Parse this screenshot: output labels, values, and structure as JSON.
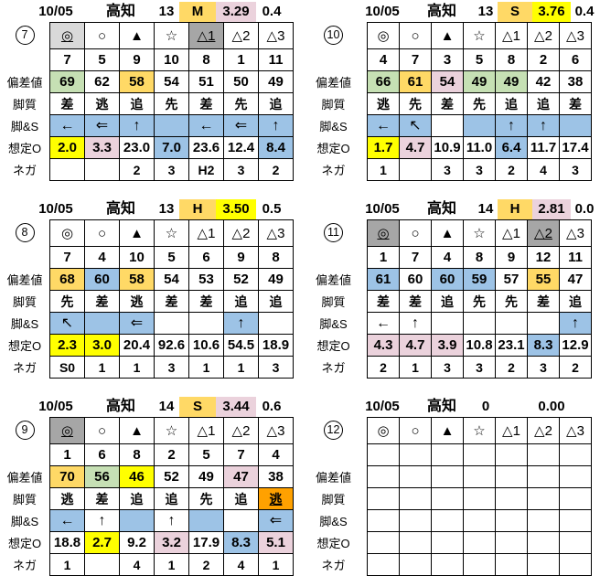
{
  "colors": {
    "grayLight": "#d9d9d9",
    "grayDark": "#a6a6a6",
    "green": "#c6e0b4",
    "gold": "#ffd966",
    "yellow": "#ffff00",
    "blue": "#9dc3e6",
    "pink": "#ebd2dc",
    "orange": "#ffa100"
  },
  "row_labels": {
    "hensachi": "偏差値",
    "kyakushitsu": "脚質",
    "ashi_s": "脚&S",
    "soutei_o": "想定O",
    "nega": "ネガ"
  },
  "blocks": [
    {
      "num": "7",
      "header": {
        "date": "10/05",
        "track": "高知",
        "race": "13",
        "pace": "M",
        "pace_bg": "gold",
        "odds": "3.29",
        "odds_bg": "pink",
        "diff": "0.4"
      },
      "rows": {
        "marks": [
          {
            "t": "◎",
            "bg": "grayLight",
            "u": true
          },
          {
            "t": "○"
          },
          {
            "t": "▲"
          },
          {
            "t": "☆"
          },
          {
            "t": "△1",
            "bg": "grayDark",
            "u": true,
            "b": true
          },
          {
            "t": "△2"
          },
          {
            "t": "△3"
          }
        ],
        "numbers": [
          {
            "t": "7"
          },
          {
            "t": "5"
          },
          {
            "t": "9"
          },
          {
            "t": "10"
          },
          {
            "t": "8"
          },
          {
            "t": "1"
          },
          {
            "t": "11"
          }
        ],
        "hensachi": [
          {
            "t": "69",
            "bg": "green"
          },
          {
            "t": "62"
          },
          {
            "t": "58",
            "bg": "gold"
          },
          {
            "t": "54"
          },
          {
            "t": "51"
          },
          {
            "t": "50"
          },
          {
            "t": "49"
          }
        ],
        "kyakushitsu": [
          {
            "t": "差"
          },
          {
            "t": "逃"
          },
          {
            "t": "追"
          },
          {
            "t": "先"
          },
          {
            "t": "差"
          },
          {
            "t": "先"
          },
          {
            "t": "追"
          }
        ],
        "ashi_s": [
          {
            "t": "←",
            "bg": "blue"
          },
          {
            "t": "⇐",
            "bg": "blue"
          },
          {
            "t": "↑",
            "bg": "blue"
          },
          {
            "t": "",
            "bg": "blue"
          },
          {
            "t": "←",
            "bg": "blue"
          },
          {
            "t": "⇐",
            "bg": "blue"
          },
          {
            "t": "↑",
            "bg": "blue"
          }
        ],
        "soutei_o": [
          {
            "t": "2.0",
            "bg": "yellow"
          },
          {
            "t": "3.3",
            "bg": "pink"
          },
          {
            "t": "23.0"
          },
          {
            "t": "7.0",
            "bg": "blue"
          },
          {
            "t": "23.6"
          },
          {
            "t": "12.4"
          },
          {
            "t": "8.4",
            "bg": "blue"
          }
        ],
        "nega": [
          {
            "t": ""
          },
          {
            "t": ""
          },
          {
            "t": "2"
          },
          {
            "t": "3"
          },
          {
            "t": "H2"
          },
          {
            "t": "3"
          },
          {
            "t": "2"
          }
        ]
      }
    },
    {
      "num": "8",
      "header": {
        "date": "10/05",
        "track": "高知",
        "race": "13",
        "pace": "H",
        "pace_bg": "gold",
        "odds": "3.50",
        "odds_bg": "yellow",
        "diff": "0.5"
      },
      "rows": {
        "marks": [
          {
            "t": "◎"
          },
          {
            "t": "○"
          },
          {
            "t": "▲"
          },
          {
            "t": "☆"
          },
          {
            "t": "△1"
          },
          {
            "t": "△2"
          },
          {
            "t": "△3"
          }
        ],
        "numbers": [
          {
            "t": "7"
          },
          {
            "t": "4"
          },
          {
            "t": "10"
          },
          {
            "t": "5"
          },
          {
            "t": "6"
          },
          {
            "t": "9"
          },
          {
            "t": "8"
          }
        ],
        "hensachi": [
          {
            "t": "68",
            "bg": "gold"
          },
          {
            "t": "60",
            "bg": "blue"
          },
          {
            "t": "58",
            "bg": "gold"
          },
          {
            "t": "54"
          },
          {
            "t": "53"
          },
          {
            "t": "52"
          },
          {
            "t": "49"
          }
        ],
        "kyakushitsu": [
          {
            "t": "先"
          },
          {
            "t": "差"
          },
          {
            "t": "逃"
          },
          {
            "t": "差"
          },
          {
            "t": "差"
          },
          {
            "t": "追"
          },
          {
            "t": "追"
          }
        ],
        "ashi_s": [
          {
            "t": "↖",
            "bg": "blue"
          },
          {
            "t": "",
            "bg": "blue"
          },
          {
            "t": "⇐",
            "bg": "blue"
          },
          {
            "t": ""
          },
          {
            "t": ""
          },
          {
            "t": "↑",
            "bg": "blue"
          },
          {
            "t": ""
          }
        ],
        "soutei_o": [
          {
            "t": "2.3",
            "bg": "yellow"
          },
          {
            "t": "3.0",
            "bg": "yellow"
          },
          {
            "t": "20.4"
          },
          {
            "t": "92.6"
          },
          {
            "t": "10.6"
          },
          {
            "t": "54.5"
          },
          {
            "t": "18.9"
          }
        ],
        "nega": [
          {
            "t": "S0"
          },
          {
            "t": "1"
          },
          {
            "t": "1"
          },
          {
            "t": "3"
          },
          {
            "t": "1"
          },
          {
            "t": "1"
          },
          {
            "t": "3"
          }
        ]
      }
    },
    {
      "num": "9",
      "header": {
        "date": "10/05",
        "track": "高知",
        "race": "14",
        "pace": "S",
        "pace_bg": "gold",
        "odds": "3.44",
        "odds_bg": "pink",
        "diff": "0.6"
      },
      "rows": {
        "marks": [
          {
            "t": "◎",
            "bg": "grayDark",
            "u": true
          },
          {
            "t": "○"
          },
          {
            "t": "▲"
          },
          {
            "t": "☆"
          },
          {
            "t": "△1"
          },
          {
            "t": "△2"
          },
          {
            "t": "△3"
          }
        ],
        "numbers": [
          {
            "t": "1"
          },
          {
            "t": "6"
          },
          {
            "t": "8"
          },
          {
            "t": "2"
          },
          {
            "t": "5"
          },
          {
            "t": "7"
          },
          {
            "t": "4"
          }
        ],
        "hensachi": [
          {
            "t": "70",
            "bg": "gold"
          },
          {
            "t": "56",
            "bg": "green"
          },
          {
            "t": "46",
            "bg": "yellow"
          },
          {
            "t": "52"
          },
          {
            "t": "49"
          },
          {
            "t": "47",
            "bg": "pink"
          },
          {
            "t": "38"
          }
        ],
        "kyakushitsu": [
          {
            "t": "逃"
          },
          {
            "t": "差"
          },
          {
            "t": "追"
          },
          {
            "t": "追"
          },
          {
            "t": "先"
          },
          {
            "t": "追"
          },
          {
            "t": "逃",
            "bg": "orange",
            "u": true
          }
        ],
        "ashi_s": [
          {
            "t": "←",
            "bg": "blue"
          },
          {
            "t": "↑"
          },
          {
            "t": "",
            "bg": "blue"
          },
          {
            "t": "↑"
          },
          {
            "t": "",
            "bg": "blue"
          },
          {
            "t": ""
          },
          {
            "t": "⇐",
            "bg": "blue"
          }
        ],
        "soutei_o": [
          {
            "t": "18.8"
          },
          {
            "t": "2.7",
            "bg": "yellow"
          },
          {
            "t": "9.2"
          },
          {
            "t": "3.2",
            "bg": "pink"
          },
          {
            "t": "17.9"
          },
          {
            "t": "8.3",
            "bg": "blue"
          },
          {
            "t": "5.1",
            "bg": "pink"
          }
        ],
        "nega": [
          {
            "t": "1"
          },
          {
            "t": ""
          },
          {
            "t": "4"
          },
          {
            "t": "1"
          },
          {
            "t": "2"
          },
          {
            "t": "4"
          },
          {
            "t": "1"
          }
        ]
      }
    },
    {
      "num": "10",
      "header": {
        "date": "10/05",
        "track": "高知",
        "race": "13",
        "pace": "S",
        "pace_bg": "gold",
        "odds": "3.76",
        "odds_bg": "yellow",
        "diff": "0.4"
      },
      "rows": {
        "marks": [
          {
            "t": "◎"
          },
          {
            "t": "○"
          },
          {
            "t": "▲"
          },
          {
            "t": "☆"
          },
          {
            "t": "△1"
          },
          {
            "t": "△2"
          },
          {
            "t": "△3"
          }
        ],
        "numbers": [
          {
            "t": "4"
          },
          {
            "t": "7"
          },
          {
            "t": "3"
          },
          {
            "t": "5"
          },
          {
            "t": "8"
          },
          {
            "t": "2"
          },
          {
            "t": "6"
          }
        ],
        "hensachi": [
          {
            "t": "66",
            "bg": "green"
          },
          {
            "t": "61",
            "bg": "gold"
          },
          {
            "t": "54",
            "bg": "pink"
          },
          {
            "t": "49",
            "bg": "green"
          },
          {
            "t": "49",
            "bg": "green"
          },
          {
            "t": "42"
          },
          {
            "t": "38"
          }
        ],
        "kyakushitsu": [
          {
            "t": "逃"
          },
          {
            "t": "先"
          },
          {
            "t": "差"
          },
          {
            "t": "先"
          },
          {
            "t": "追"
          },
          {
            "t": "追"
          },
          {
            "t": "差"
          }
        ],
        "ashi_s": [
          {
            "t": "←",
            "bg": "blue"
          },
          {
            "t": "↖",
            "bg": "blue"
          },
          {
            "t": ""
          },
          {
            "t": "",
            "bg": "blue"
          },
          {
            "t": "↑",
            "bg": "blue"
          },
          {
            "t": "↑",
            "bg": "blue"
          },
          {
            "t": "",
            "bg": "blue"
          }
        ],
        "soutei_o": [
          {
            "t": "1.7",
            "bg": "yellow"
          },
          {
            "t": "4.7",
            "bg": "pink"
          },
          {
            "t": "10.9"
          },
          {
            "t": "11.0"
          },
          {
            "t": "6.4",
            "bg": "blue"
          },
          {
            "t": "11.7"
          },
          {
            "t": "17.4"
          }
        ],
        "nega": [
          {
            "t": "1"
          },
          {
            "t": ""
          },
          {
            "t": "3"
          },
          {
            "t": "3"
          },
          {
            "t": "2"
          },
          {
            "t": "4"
          },
          {
            "t": "3"
          }
        ]
      }
    },
    {
      "num": "11",
      "header": {
        "date": "10/05",
        "track": "高知",
        "race": "14",
        "pace": "H",
        "pace_bg": "gold",
        "odds": "2.81",
        "odds_bg": "pink",
        "diff": "0.0"
      },
      "rows": {
        "marks": [
          {
            "t": "◎",
            "bg": "grayDark",
            "u": true
          },
          {
            "t": "○"
          },
          {
            "t": "▲"
          },
          {
            "t": "☆"
          },
          {
            "t": "△1"
          },
          {
            "t": "△2",
            "bg": "grayDark",
            "u": true,
            "b": true
          },
          {
            "t": "△3"
          }
        ],
        "numbers": [
          {
            "t": "1"
          },
          {
            "t": "7"
          },
          {
            "t": "4"
          },
          {
            "t": "8"
          },
          {
            "t": "9"
          },
          {
            "t": "12"
          },
          {
            "t": "11"
          }
        ],
        "hensachi": [
          {
            "t": "61",
            "bg": "blue"
          },
          {
            "t": "60"
          },
          {
            "t": "60",
            "bg": "blue"
          },
          {
            "t": "59",
            "bg": "blue"
          },
          {
            "t": "57"
          },
          {
            "t": "55",
            "bg": "gold"
          },
          {
            "t": "47"
          }
        ],
        "kyakushitsu": [
          {
            "t": "差"
          },
          {
            "t": "差"
          },
          {
            "t": "追"
          },
          {
            "t": "先"
          },
          {
            "t": "先"
          },
          {
            "t": "差"
          },
          {
            "t": "追"
          }
        ],
        "ashi_s": [
          {
            "t": "←"
          },
          {
            "t": "↑"
          },
          {
            "t": ""
          },
          {
            "t": ""
          },
          {
            "t": ""
          },
          {
            "t": ""
          },
          {
            "t": "↑",
            "bg": "blue"
          }
        ],
        "soutei_o": [
          {
            "t": "4.3",
            "bg": "pink"
          },
          {
            "t": "4.7",
            "bg": "pink"
          },
          {
            "t": "3.9",
            "bg": "pink"
          },
          {
            "t": "10.8"
          },
          {
            "t": "23.1"
          },
          {
            "t": "8.3",
            "bg": "blue"
          },
          {
            "t": "12.9"
          }
        ],
        "nega": [
          {
            "t": "2"
          },
          {
            "t": "1"
          },
          {
            "t": "3"
          },
          {
            "t": "3"
          },
          {
            "t": "2"
          },
          {
            "t": "3"
          },
          {
            "t": "2"
          }
        ]
      }
    },
    {
      "num": "12",
      "header": {
        "date": "10/05",
        "track": "高知",
        "race": "0",
        "pace": "",
        "odds": "0.00",
        "diff": ""
      },
      "rows": {
        "marks": [
          {
            "t": "◎"
          },
          {
            "t": "○"
          },
          {
            "t": "▲"
          },
          {
            "t": "☆"
          },
          {
            "t": "△1"
          },
          {
            "t": "△2"
          },
          {
            "t": "△3"
          }
        ],
        "numbers": [
          {
            "t": ""
          },
          {
            "t": ""
          },
          {
            "t": ""
          },
          {
            "t": ""
          },
          {
            "t": ""
          },
          {
            "t": ""
          },
          {
            "t": ""
          }
        ],
        "hensachi": [
          {
            "t": ""
          },
          {
            "t": ""
          },
          {
            "t": ""
          },
          {
            "t": ""
          },
          {
            "t": ""
          },
          {
            "t": ""
          },
          {
            "t": ""
          }
        ],
        "kyakushitsu": [
          {
            "t": ""
          },
          {
            "t": ""
          },
          {
            "t": ""
          },
          {
            "t": ""
          },
          {
            "t": ""
          },
          {
            "t": ""
          },
          {
            "t": ""
          }
        ],
        "ashi_s": [
          {
            "t": ""
          },
          {
            "t": ""
          },
          {
            "t": ""
          },
          {
            "t": ""
          },
          {
            "t": ""
          },
          {
            "t": ""
          },
          {
            "t": ""
          }
        ],
        "soutei_o": [
          {
            "t": ""
          },
          {
            "t": ""
          },
          {
            "t": ""
          },
          {
            "t": ""
          },
          {
            "t": ""
          },
          {
            "t": ""
          },
          {
            "t": ""
          }
        ],
        "nega": [
          {
            "t": ""
          },
          {
            "t": ""
          },
          {
            "t": ""
          },
          {
            "t": ""
          },
          {
            "t": ""
          },
          {
            "t": ""
          },
          {
            "t": ""
          }
        ]
      }
    }
  ]
}
